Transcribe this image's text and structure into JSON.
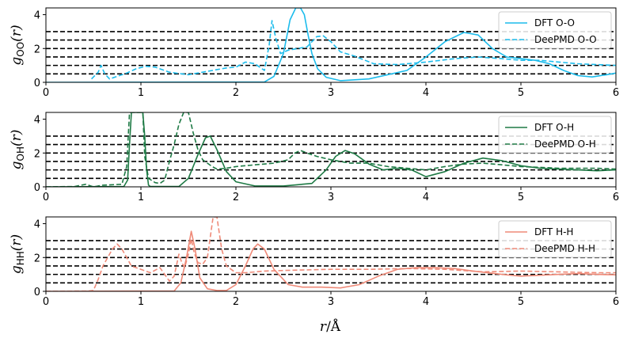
{
  "colors": {
    "oo": "#1cbcec",
    "oh": "#1e7a45",
    "hh": "#ef8a78",
    "ref": "#000000"
  },
  "chart_data": [
    {
      "type": "line",
      "ylabel": "g_OO(r)",
      "ylabel_parts": {
        "g": "g",
        "sub": "OO",
        "r": "(r)"
      },
      "xlim": [
        0,
        6
      ],
      "ylim": [
        0,
        4.4
      ],
      "xticks": [
        "0",
        "1",
        "2",
        "3",
        "4",
        "5",
        "6"
      ],
      "yticks": [
        "0",
        "2",
        "4"
      ],
      "reference_lines": [
        0.5,
        1.0,
        1.5,
        2.0,
        2.5,
        3.0
      ],
      "legend_position": "top-right",
      "series": [
        {
          "name": "DFT O-O",
          "style": "solid",
          "color": "#1cbcec",
          "x": [
            0,
            2.3,
            2.4,
            2.5,
            2.57,
            2.63,
            2.68,
            2.72,
            2.76,
            2.8,
            2.86,
            2.95,
            3.1,
            3.4,
            3.8,
            4.0,
            4.2,
            4.4,
            4.55,
            4.7,
            4.85,
            5.0,
            5.15,
            5.3,
            5.45,
            5.6,
            5.75,
            5.9,
            6.0
          ],
          "y": [
            0,
            0.02,
            0.35,
            1.7,
            3.7,
            4.4,
            4.4,
            4.0,
            2.8,
            1.7,
            0.8,
            0.3,
            0.1,
            0.2,
            0.7,
            1.5,
            2.4,
            2.95,
            2.8,
            2.0,
            1.5,
            1.4,
            1.3,
            1.1,
            0.7,
            0.4,
            0.32,
            0.45,
            0.55
          ]
        },
        {
          "name": "DeePMD O-O",
          "style": "dashed",
          "color": "#1cbcec",
          "x": [
            0.48,
            0.55,
            0.58,
            0.62,
            0.67,
            0.75,
            0.85,
            0.95,
            1.05,
            1.15,
            1.3,
            1.5,
            1.7,
            1.9,
            2.0,
            2.1,
            2.2,
            2.3,
            2.35,
            2.38,
            2.42,
            2.47,
            2.55,
            2.65,
            2.75,
            2.85,
            2.92,
            3.0,
            3.1,
            3.25,
            3.45,
            3.7,
            4.0,
            4.3,
            4.55,
            4.8,
            5.0,
            5.2,
            5.4,
            5.6,
            5.8,
            6.0
          ],
          "y": [
            0.2,
            0.6,
            1.0,
            0.5,
            0.2,
            0.35,
            0.55,
            0.8,
            0.95,
            0.9,
            0.6,
            0.45,
            0.65,
            0.85,
            0.9,
            1.2,
            1.1,
            0.7,
            2.2,
            3.65,
            2.6,
            1.7,
            1.9,
            2.0,
            2.1,
            2.7,
            2.75,
            2.4,
            1.8,
            1.55,
            1.1,
            1.05,
            1.2,
            1.4,
            1.5,
            1.4,
            1.3,
            1.3,
            1.2,
            1.1,
            1.05,
            1.0
          ]
        }
      ]
    },
    {
      "type": "line",
      "ylabel": "g_OH(r)",
      "ylabel_parts": {
        "g": "g",
        "sub": "OH",
        "r": "(r)"
      },
      "xlim": [
        0,
        6
      ],
      "ylim": [
        0,
        4.4
      ],
      "xticks": [
        "0",
        "1",
        "2",
        "3",
        "4",
        "5",
        "6"
      ],
      "yticks": [
        "0",
        "2",
        "4"
      ],
      "reference_lines": [
        0.5,
        1.0,
        1.5,
        2.0,
        2.5,
        3.0
      ],
      "legend_position": "top-right",
      "series": [
        {
          "name": "DFT O-H",
          "style": "solid",
          "color": "#1e7a45",
          "x": [
            0,
            0.82,
            0.86,
            0.88,
            0.9,
            0.92,
            1.0,
            1.02,
            1.04,
            1.06,
            1.08,
            1.1,
            1.4,
            1.5,
            1.6,
            1.68,
            1.73,
            1.8,
            1.9,
            2.0,
            2.2,
            2.5,
            2.8,
            2.95,
            3.05,
            3.15,
            3.25,
            3.4,
            3.55,
            3.7,
            3.85,
            4.0,
            4.2,
            4.4,
            4.6,
            4.8,
            5.0,
            5.2,
            5.4,
            5.6,
            5.8,
            6.0
          ],
          "y": [
            0,
            0.02,
            0.4,
            2.5,
            4.4,
            4.4,
            4.4,
            4.4,
            3.0,
            1.0,
            0.1,
            0.02,
            0.02,
            0.5,
            1.9,
            2.9,
            3.0,
            2.2,
            0.9,
            0.3,
            0.05,
            0.05,
            0.2,
            1.0,
            1.8,
            2.15,
            1.95,
            1.35,
            1.0,
            1.1,
            1.0,
            0.6,
            0.9,
            1.4,
            1.7,
            1.55,
            1.25,
            1.1,
            1.05,
            1.0,
            0.95,
            1.0
          ]
        },
        {
          "name": "DeePMD O-H",
          "style": "dashed",
          "color": "#1e7a45",
          "x": [
            0,
            0.3,
            0.42,
            0.5,
            0.6,
            0.8,
            0.85,
            0.88,
            0.9,
            0.93,
            1.0,
            1.02,
            1.04,
            1.08,
            1.15,
            1.2,
            1.25,
            1.3,
            1.35,
            1.4,
            1.45,
            1.5,
            1.55,
            1.6,
            1.65,
            1.7,
            1.75,
            1.8,
            1.9,
            2.0,
            2.2,
            2.4,
            2.55,
            2.62,
            2.68,
            2.75,
            2.85,
            3.0,
            3.2,
            3.4,
            3.6,
            3.8,
            4.0,
            4.2,
            4.4,
            4.6,
            4.8,
            5.0,
            5.2,
            5.4,
            5.6,
            5.8,
            6.0
          ],
          "y": [
            0,
            0.02,
            0.15,
            0.0,
            0.1,
            0.15,
            1.2,
            4.4,
            4.4,
            4.4,
            4.4,
            4.4,
            1.8,
            0.5,
            0.25,
            0.2,
            0.4,
            1.5,
            2.5,
            3.7,
            4.4,
            4.4,
            3.2,
            2.2,
            1.6,
            1.4,
            1.2,
            1.05,
            1.1,
            1.2,
            1.3,
            1.4,
            1.6,
            2.0,
            2.15,
            2.0,
            1.8,
            1.6,
            1.4,
            1.4,
            1.2,
            1.1,
            1.0,
            1.2,
            1.35,
            1.4,
            1.3,
            1.2,
            1.15,
            1.1,
            1.1,
            1.1,
            1.05
          ]
        }
      ]
    },
    {
      "type": "line",
      "ylabel": "g_HH(r)",
      "ylabel_parts": {
        "g": "g",
        "sub": "HH",
        "r": "(r)"
      },
      "xlabel": "r/Å",
      "xlabel_parts": {
        "r": "r",
        "rest": "/Å"
      },
      "xlim": [
        0,
        6
      ],
      "ylim": [
        0,
        4.4
      ],
      "xticks": [
        "0",
        "1",
        "2",
        "3",
        "4",
        "5",
        "6"
      ],
      "yticks": [
        "0",
        "2",
        "4"
      ],
      "reference_lines": [
        0.5,
        1.0,
        1.5,
        2.0,
        2.5,
        3.0
      ],
      "legend_position": "top-right",
      "series": [
        {
          "name": "DFT H-H",
          "style": "solid",
          "color": "#ef8a78",
          "x": [
            0,
            1.35,
            1.42,
            1.48,
            1.53,
            1.57,
            1.62,
            1.7,
            1.8,
            1.9,
            2.0,
            2.1,
            2.18,
            2.23,
            2.3,
            2.4,
            2.55,
            2.7,
            2.9,
            3.1,
            3.3,
            3.5,
            3.7,
            3.9,
            4.1,
            4.3,
            4.5,
            4.8,
            5.0,
            5.2,
            5.4,
            5.6,
            5.8,
            6.0
          ],
          "y": [
            0,
            0.02,
            0.5,
            2.0,
            3.55,
            2.5,
            0.8,
            0.15,
            0.05,
            0.05,
            0.4,
            1.5,
            2.5,
            2.8,
            2.5,
            1.3,
            0.4,
            0.25,
            0.25,
            0.2,
            0.4,
            0.9,
            1.3,
            1.4,
            1.4,
            1.35,
            1.2,
            1.0,
            0.9,
            0.95,
            1.0,
            1.05,
            1.0,
            0.98
          ]
        },
        {
          "name": "DeePMD H-H",
          "style": "dashed",
          "color": "#ef8a78",
          "x": [
            0,
            0.45,
            0.5,
            0.55,
            0.6,
            0.65,
            0.7,
            0.75,
            0.8,
            0.85,
            0.9,
            1.0,
            1.1,
            1.2,
            1.25,
            1.3,
            1.35,
            1.4,
            1.43,
            1.46,
            1.5,
            1.53,
            1.56,
            1.6,
            1.65,
            1.7,
            1.73,
            1.76,
            1.8,
            1.85,
            1.9,
            2.0,
            2.1,
            2.3,
            2.6,
            3.0,
            3.4,
            3.8,
            4.2,
            4.6,
            5.0,
            5.4,
            5.8,
            6.0
          ],
          "y": [
            0,
            0.02,
            0.05,
            0.7,
            1.5,
            2.0,
            2.5,
            2.8,
            2.5,
            2.0,
            1.5,
            1.3,
            1.1,
            1.4,
            1.0,
            0.6,
            0.9,
            2.2,
            1.7,
            1.4,
            2.2,
            3.1,
            2.3,
            1.7,
            1.6,
            2.0,
            3.2,
            4.4,
            4.4,
            2.5,
            1.5,
            1.1,
            1.1,
            1.2,
            1.25,
            1.3,
            1.3,
            1.35,
            1.3,
            1.15,
            1.2,
            1.15,
            1.1,
            1.1
          ]
        }
      ]
    }
  ]
}
